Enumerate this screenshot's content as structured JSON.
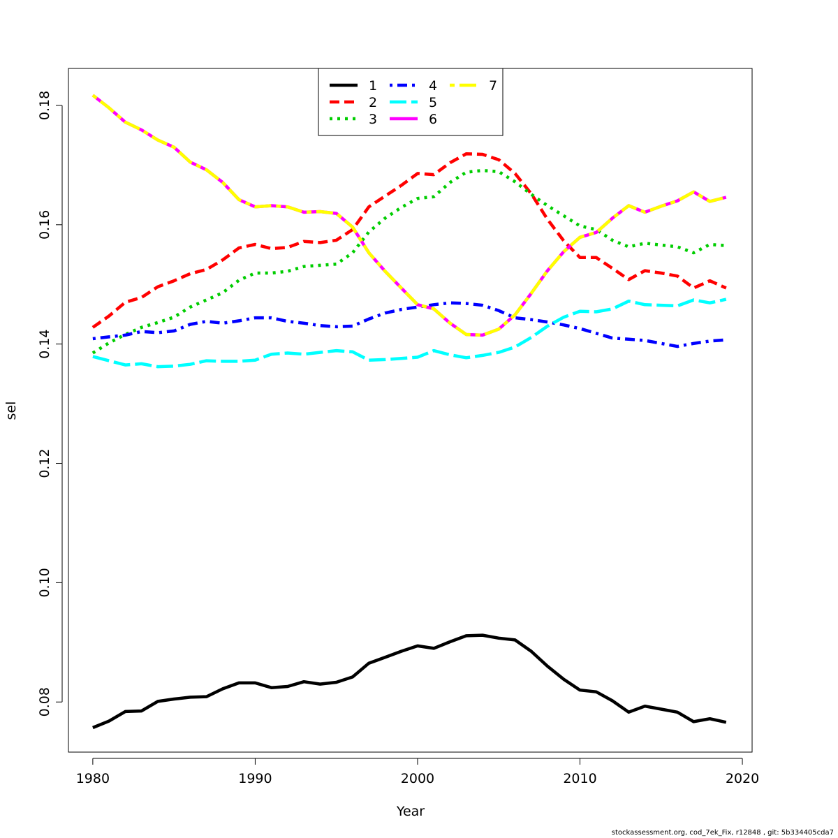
{
  "chart_data": {
    "type": "line",
    "title": "",
    "xlabel": "Year",
    "ylabel": "sel",
    "xlim": [
      1978.5,
      2020.6
    ],
    "ylim": [
      0.0716,
      0.1862
    ],
    "x_ticks": [
      1980,
      1990,
      2000,
      2010,
      2020
    ],
    "y_ticks": [
      0.08,
      0.1,
      0.12,
      0.14,
      0.16,
      0.18
    ],
    "y_tick_labels": [
      "0.08",
      "0.10",
      "0.12",
      "0.14",
      "0.16",
      "0.18"
    ],
    "grid": false,
    "legend_position": "top-center",
    "x": [
      1980,
      1981,
      1982,
      1983,
      1984,
      1985,
      1986,
      1987,
      1988,
      1989,
      1990,
      1991,
      1992,
      1993,
      1994,
      1995,
      1996,
      1997,
      1998,
      1999,
      2000,
      2001,
      2002,
      2003,
      2004,
      2005,
      2006,
      2007,
      2008,
      2009,
      2010,
      2011,
      2012,
      2013,
      2014,
      2015,
      2016,
      2017,
      2018,
      2019
    ],
    "series": [
      {
        "name": "1",
        "color": "#000000",
        "dash": "solid",
        "values": [
          0.0757,
          0.0768,
          0.0784,
          0.0785,
          0.0801,
          0.0805,
          0.0808,
          0.0809,
          0.0822,
          0.0832,
          0.0832,
          0.0824,
          0.0826,
          0.0834,
          0.083,
          0.0833,
          0.0842,
          0.0865,
          0.0875,
          0.0885,
          0.0894,
          0.089,
          0.0901,
          0.0911,
          0.0912,
          0.0907,
          0.0904,
          0.0885,
          0.086,
          0.0838,
          0.082,
          0.0817,
          0.0802,
          0.0783,
          0.0793,
          0.0788,
          0.0783,
          0.0767,
          0.0772,
          0.0766
        ]
      },
      {
        "name": "2",
        "color": "#ff0000",
        "dash": "dashed",
        "values": [
          0.1428,
          0.1447,
          0.147,
          0.1478,
          0.1496,
          0.1506,
          0.1518,
          0.1525,
          0.1541,
          0.1561,
          0.1567,
          0.156,
          0.1562,
          0.1572,
          0.157,
          0.1574,
          0.1592,
          0.163,
          0.1648,
          0.1666,
          0.1686,
          0.1684,
          0.1704,
          0.1719,
          0.1718,
          0.1709,
          0.1686,
          0.1652,
          0.1609,
          0.1573,
          0.1545,
          0.1545,
          0.1527,
          0.1508,
          0.1523,
          0.1519,
          0.1514,
          0.1494,
          0.1506,
          0.1494
        ]
      },
      {
        "name": "3",
        "color": "#00cd00",
        "dash": "dotted",
        "values": [
          0.1385,
          0.1402,
          0.1416,
          0.1428,
          0.1436,
          0.1445,
          0.1462,
          0.1474,
          0.1486,
          0.1507,
          0.1519,
          0.1519,
          0.1522,
          0.153,
          0.1532,
          0.1534,
          0.1553,
          0.1588,
          0.1611,
          0.1629,
          0.1644,
          0.1647,
          0.1671,
          0.1688,
          0.1691,
          0.1689,
          0.1672,
          0.1651,
          0.1632,
          0.1615,
          0.1598,
          0.1592,
          0.1574,
          0.1563,
          0.1569,
          0.1566,
          0.1563,
          0.1553,
          0.1567,
          0.1565
        ]
      },
      {
        "name": "4",
        "color": "#0000ff",
        "dash": "dotdash",
        "values": [
          0.1409,
          0.1412,
          0.1415,
          0.1421,
          0.1419,
          0.1422,
          0.1433,
          0.1438,
          0.1435,
          0.1439,
          0.1444,
          0.1444,
          0.1438,
          0.1435,
          0.1431,
          0.1429,
          0.143,
          0.1442,
          0.1452,
          0.1458,
          0.1462,
          0.1466,
          0.1469,
          0.1468,
          0.1465,
          0.1456,
          0.1444,
          0.1441,
          0.1437,
          0.1432,
          0.1426,
          0.1418,
          0.141,
          0.1408,
          0.1406,
          0.1401,
          0.1396,
          0.1401,
          0.1405,
          0.1407
        ]
      },
      {
        "name": "5",
        "color": "#00ffff",
        "dash": "longdash",
        "values": [
          0.1379,
          0.1372,
          0.1365,
          0.1367,
          0.1362,
          0.1363,
          0.1366,
          0.1372,
          0.1371,
          0.1371,
          0.1373,
          0.1383,
          0.1385,
          0.1383,
          0.1386,
          0.1389,
          0.1387,
          0.1373,
          0.1374,
          0.1376,
          0.1378,
          0.1389,
          0.1382,
          0.1377,
          0.1381,
          0.1386,
          0.1395,
          0.1411,
          0.143,
          0.1445,
          0.1455,
          0.1454,
          0.1459,
          0.1472,
          0.1466,
          0.1465,
          0.1464,
          0.1474,
          0.1469,
          0.1475
        ]
      },
      {
        "name": "6",
        "color": "#ff00ff",
        "dash": "solid",
        "values": [
          0.1817,
          0.1796,
          0.1772,
          0.1759,
          0.1742,
          0.173,
          0.1705,
          0.1692,
          0.1671,
          0.1642,
          0.163,
          0.1632,
          0.163,
          0.1621,
          0.1622,
          0.1619,
          0.1596,
          0.1553,
          0.1522,
          0.1494,
          0.1466,
          0.1459,
          0.1435,
          0.1416,
          0.1415,
          0.1425,
          0.1449,
          0.1485,
          0.1523,
          0.1555,
          0.1579,
          0.1587,
          0.1611,
          0.1632,
          0.1621,
          0.1631,
          0.164,
          0.1655,
          0.1639,
          0.1646
        ]
      },
      {
        "name": "7",
        "color": "#ffff00",
        "dash": "twodash",
        "values": [
          0.1817,
          0.1796,
          0.1772,
          0.1759,
          0.1742,
          0.173,
          0.1705,
          0.1692,
          0.1671,
          0.1642,
          0.163,
          0.1632,
          0.163,
          0.1621,
          0.1622,
          0.1619,
          0.1596,
          0.1553,
          0.1522,
          0.1494,
          0.1466,
          0.1459,
          0.1435,
          0.1416,
          0.1415,
          0.1425,
          0.1449,
          0.1485,
          0.1523,
          0.1555,
          0.1579,
          0.1587,
          0.1611,
          0.1632,
          0.1621,
          0.1631,
          0.164,
          0.1655,
          0.1639,
          0.1646
        ]
      }
    ]
  },
  "footer_text": "stockassessment.org, cod_7ek_Fix, r12848 , git: 5b334405cda7"
}
